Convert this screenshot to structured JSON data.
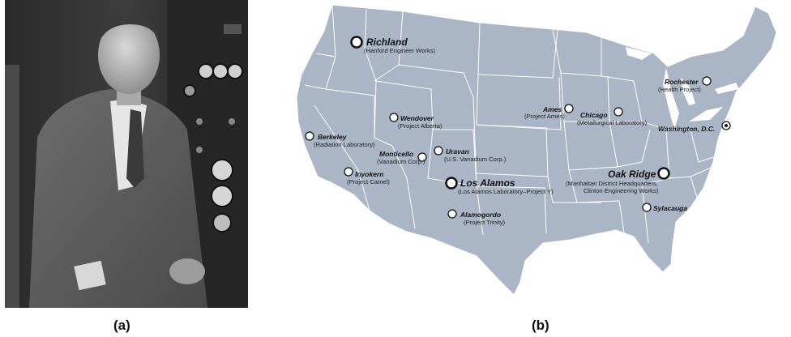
{
  "panels": {
    "a": {
      "label": "(a)"
    },
    "b": {
      "label": "(b)"
    }
  },
  "colors": {
    "land": "#aab6c6",
    "border": "#ffffff",
    "marker_fill": "#ffffff",
    "marker_stroke": "#111111"
  },
  "sites": [
    {
      "name": "Richland",
      "sub": "(Hanford Engineer Works)",
      "kind": "major"
    },
    {
      "name": "Berkeley",
      "sub": "(Radiation Laboratory)",
      "kind": "minor"
    },
    {
      "name": "Wendover",
      "sub": "(Project Alberta)",
      "kind": "minor"
    },
    {
      "name": "Monticello",
      "sub": "(Vanadium Corp.)",
      "kind": "minor"
    },
    {
      "name": "Uravan",
      "sub": "(U.S. Vanadium Corp.)",
      "kind": "minor"
    },
    {
      "name": "Inyokern",
      "sub": "(Project Camel)",
      "kind": "minor"
    },
    {
      "name": "Los Alamos",
      "sub": "(Los Alamos Laboratory–Project Y)",
      "kind": "major"
    },
    {
      "name": "Alamogordo",
      "sub": "(Project Trinity)",
      "kind": "minor"
    },
    {
      "name": "Ames",
      "sub": "(Project Ames)",
      "kind": "minor"
    },
    {
      "name": "Chicago",
      "sub": "(Metallurgical Laboratory)",
      "kind": "minor"
    },
    {
      "name": "Rochester",
      "sub": "(Health Project)",
      "kind": "minor"
    },
    {
      "name": "Washington, D.C.",
      "sub": "",
      "kind": "capital"
    },
    {
      "name": "Oak Ridge",
      "sub": "(Manhattan District Headquarters,",
      "sub2": "Clinton Engineering Works)",
      "kind": "major"
    },
    {
      "name": "Sylacauga",
      "sub": "",
      "kind": "minor"
    }
  ]
}
